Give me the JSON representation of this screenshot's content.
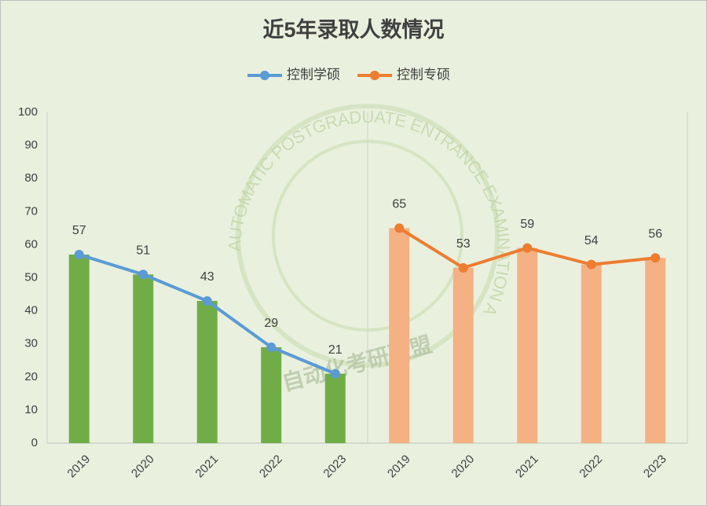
{
  "chart_data": {
    "type": "combo",
    "title": "近5年录取人数情况",
    "categories": [
      "2019",
      "2020",
      "2021",
      "2022",
      "2023",
      "2019",
      "2020",
      "2021",
      "2022",
      "2023"
    ],
    "series": [
      {
        "name": "控制学硕",
        "type": "line",
        "color": "#5b9bd5",
        "values": [
          57,
          51,
          43,
          29,
          21,
          null,
          null,
          null,
          null,
          null
        ]
      },
      {
        "name": "控制专硕",
        "type": "line",
        "color": "#ed7d31",
        "values": [
          null,
          null,
          null,
          null,
          null,
          65,
          53,
          59,
          54,
          56
        ]
      },
      {
        "type": "bar",
        "color": "#70ad47",
        "values": [
          57,
          51,
          43,
          29,
          21,
          null,
          null,
          null,
          null,
          null
        ]
      },
      {
        "type": "bar",
        "color": "#f4b183",
        "values": [
          null,
          null,
          null,
          null,
          null,
          65,
          53,
          59,
          54,
          56
        ]
      }
    ],
    "ylim": [
      0,
      100
    ],
    "yticks": [
      0,
      10,
      20,
      30,
      40,
      50,
      60,
      70,
      80,
      90,
      100
    ],
    "grid": false,
    "legend": "top",
    "watermark": {
      "text_en": "AUTOMATIC POSTGRADUATE ENTRANCE EXAMINATION ALLIANCE",
      "text_cn": "自动化考研联盟"
    }
  }
}
